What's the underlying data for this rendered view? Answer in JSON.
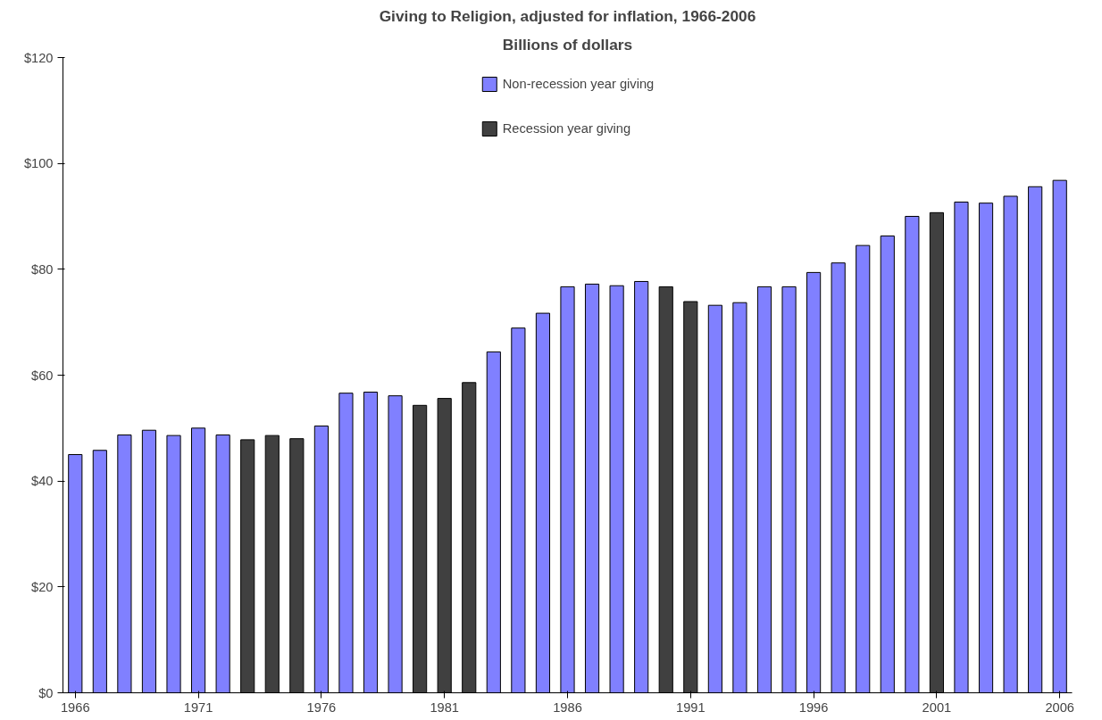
{
  "chart_data": {
    "type": "bar",
    "title": "Giving to Religion, adjusted for inflation, 1966-2006",
    "subtitle": "Billions of dollars",
    "categories": [
      "1966",
      null,
      null,
      null,
      null,
      "1971",
      null,
      null,
      null,
      null,
      "1976",
      null,
      null,
      null,
      null,
      "1981",
      null,
      null,
      null,
      null,
      "1986",
      null,
      null,
      null,
      null,
      "1991",
      null,
      null,
      null,
      null,
      "1996",
      null,
      null,
      null,
      null,
      "2001",
      null,
      null,
      null,
      null,
      "2006"
    ],
    "series": [
      {
        "name": "Non-recession year giving",
        "color": "#8080ff",
        "values": [
          45.0,
          45.8,
          48.7,
          49.6,
          48.6,
          50.0,
          48.7,
          null,
          null,
          null,
          50.4,
          56.6,
          56.8,
          56.1,
          null,
          null,
          null,
          64.4,
          68.9,
          71.7,
          76.7,
          77.2,
          76.9,
          77.7,
          null,
          null,
          73.2,
          73.7,
          76.7,
          76.7,
          79.4,
          81.2,
          84.5,
          86.3,
          90.0,
          null,
          92.7,
          92.5,
          93.8,
          95.6,
          96.8
        ]
      },
      {
        "name": "Recession year giving",
        "color": "#404040",
        "values": [
          null,
          null,
          null,
          null,
          null,
          null,
          null,
          47.8,
          48.6,
          48.0,
          null,
          null,
          null,
          null,
          54.3,
          55.6,
          58.6,
          null,
          null,
          null,
          null,
          null,
          null,
          null,
          76.7,
          73.9,
          null,
          null,
          null,
          null,
          null,
          null,
          null,
          null,
          null,
          90.7,
          null,
          null,
          null,
          null,
          null
        ]
      }
    ],
    "ylim": [
      0,
      120
    ],
    "yticks": [
      {
        "value": 0,
        "label": "$0"
      },
      {
        "value": 20,
        "label": "$20"
      },
      {
        "value": 40,
        "label": "$40"
      },
      {
        "value": 60,
        "label": "$60"
      },
      {
        "value": 80,
        "label": "$80"
      },
      {
        "value": 100,
        "label": "$100"
      },
      {
        "value": 120,
        "label": "$120"
      }
    ],
    "grid": false,
    "legend": "top"
  }
}
